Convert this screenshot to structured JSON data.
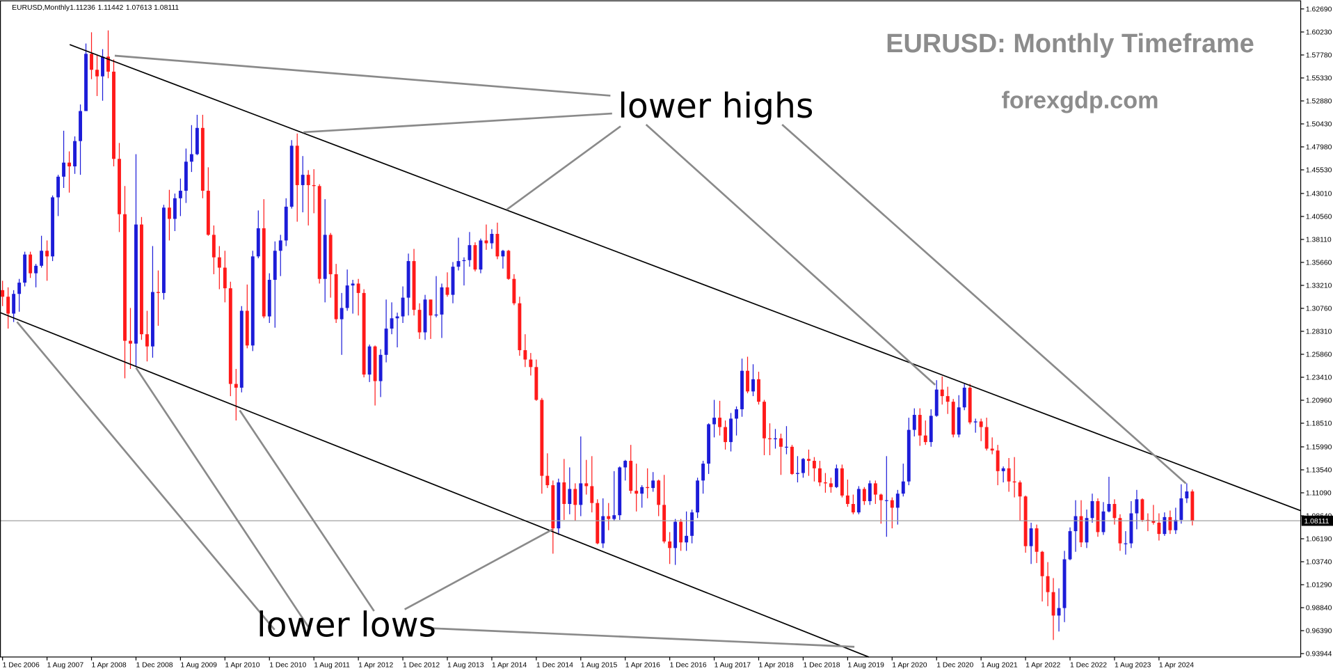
{
  "chart_data": {
    "type": "candlestick",
    "symbol": "EURUSD,Monthly",
    "title": "EURUSD: Monthly Timeframe",
    "subtitle": "forexgdp.com",
    "annotations": [
      "lower highs",
      "lower lows"
    ],
    "up_color": "#1c1cd8",
    "down_color": "#ff1a1a",
    "ylim": [
      0.9358,
      1.636
    ],
    "yticks": [
      {
        "value": 1.6269,
        "label": "1.62690"
      },
      {
        "value": 1.6023,
        "label": "1.60230"
      },
      {
        "value": 1.5778,
        "label": "1.57780"
      },
      {
        "value": 1.5533,
        "label": "1.55330"
      },
      {
        "value": 1.5288,
        "label": "1.52880"
      },
      {
        "value": 1.5043,
        "label": "1.50430"
      },
      {
        "value": 1.4798,
        "label": "1.47980"
      },
      {
        "value": 1.4553,
        "label": "1.45530"
      },
      {
        "value": 1.4301,
        "label": "1.43010"
      },
      {
        "value": 1.4056,
        "label": "1.40560"
      },
      {
        "value": 1.3811,
        "label": "1.38110"
      },
      {
        "value": 1.3566,
        "label": "1.35660"
      },
      {
        "value": 1.3321,
        "label": "1.33210"
      },
      {
        "value": 1.3076,
        "label": "1.30760"
      },
      {
        "value": 1.2831,
        "label": "1.28310"
      },
      {
        "value": 1.2586,
        "label": "1.25860"
      },
      {
        "value": 1.2341,
        "label": "1.23410"
      },
      {
        "value": 1.2096,
        "label": "1.20960"
      },
      {
        "value": 1.1851,
        "label": "1.18510"
      },
      {
        "value": 1.1599,
        "label": "1.15990"
      },
      {
        "value": 1.1354,
        "label": "1.13540"
      },
      {
        "value": 1.1109,
        "label": "1.11090"
      },
      {
        "value": 1.0864,
        "label": "1.08640"
      },
      {
        "value": 1.0619,
        "label": "1.06190"
      },
      {
        "value": 1.0374,
        "label": "1.03740"
      },
      {
        "value": 1.0129,
        "label": "1.01290"
      },
      {
        "value": 0.9884,
        "label": "0.98840"
      },
      {
        "value": 0.9639,
        "label": "0.96390"
      },
      0.93944
    ],
    "categories": [
      "1 Dec 2006",
      null,
      null,
      null,
      null,
      null,
      null,
      null,
      "1 Aug 2007",
      null,
      null,
      null,
      null,
      null,
      null,
      null,
      "1 Apr 2008",
      null,
      null,
      null,
      null,
      null,
      null,
      null,
      "1 Dec 2008",
      null,
      null,
      null,
      null,
      null,
      null,
      null,
      "1 Aug 2009",
      null,
      null,
      null,
      null,
      null,
      null,
      null,
      "1 Apr 2010",
      null,
      null,
      null,
      null,
      null,
      null,
      null,
      "1 Dec 2010",
      null,
      null,
      null,
      null,
      null,
      null,
      null,
      "1 Aug 2011",
      null,
      null,
      null,
      null,
      null,
      null,
      null,
      "1 Apr 2012",
      null,
      null,
      null,
      null,
      null,
      null,
      null,
      "1 Dec 2012",
      null,
      null,
      null,
      null,
      null,
      null,
      null,
      "1 Aug 2013",
      null,
      null,
      null,
      null,
      null,
      null,
      null,
      "1 Apr 2014",
      null,
      null,
      null,
      null,
      null,
      null,
      null,
      "1 Dec 2014",
      null,
      null,
      null,
      null,
      null,
      null,
      null,
      "1 Aug 2015",
      null,
      null,
      null,
      null,
      null,
      null,
      null,
      "1 Apr 2016",
      null,
      null,
      null,
      null,
      null,
      null,
      null,
      "1 Dec 2016",
      null,
      null,
      null,
      null,
      null,
      null,
      null,
      "1 Aug 2017",
      null,
      null,
      null,
      null,
      null,
      null,
      null,
      "1 Apr 2018",
      null,
      null,
      null,
      null,
      null,
      null,
      null,
      "1 Dec 2018",
      null,
      null,
      null,
      null,
      null,
      null,
      null,
      "1 Aug 2019",
      null,
      null,
      null,
      null,
      null,
      null,
      null,
      "1 Apr 2020",
      null,
      null,
      null,
      null,
      null,
      null,
      null,
      "1 Dec 2020",
      null,
      null,
      null,
      null,
      null,
      null,
      null,
      "1 Aug 2021",
      null,
      null,
      null,
      null,
      null,
      null,
      null,
      "1 Apr 2022",
      null,
      null,
      null,
      null,
      null,
      null,
      null,
      "1 Dec 2022",
      null,
      null,
      null,
      null,
      null,
      null,
      null,
      "1 Aug 2023",
      null,
      null,
      null,
      null,
      null,
      null,
      null,
      "1 Apr 2024",
      null,
      null,
      null,
      null,
      null,
      null
    ],
    "open": [
      1.327,
      1.32,
      1.302,
      1.323,
      1.335,
      1.365,
      1.345,
      1.353,
      1.369,
      1.363,
      1.426,
      1.448,
      1.463,
      1.459,
      1.486,
      1.518,
      1.579,
      1.562,
      1.555,
      1.576,
      1.56,
      1.467,
      1.408,
      1.273,
      1.27,
      1.397,
      1.28,
      1.267,
      1.325,
      1.324,
      1.415,
      1.403,
      1.425,
      1.433,
      1.464,
      1.472,
      1.5,
      1.433,
      1.386,
      1.362,
      1.351,
      1.329,
      1.227,
      1.223,
      1.305,
      1.268,
      1.363,
      1.393,
      1.299,
      1.338,
      1.369,
      1.38,
      1.416,
      1.481,
      1.439,
      1.45,
      1.439,
      1.438,
      1.339,
      1.386,
      1.344,
      1.296,
      1.308,
      1.332,
      1.334,
      1.324,
      1.237,
      1.267,
      1.23,
      1.258,
      1.286,
      1.297,
      1.299,
      1.319,
      1.358,
      1.306,
      1.282,
      1.317,
      1.3,
      1.301,
      1.33,
      1.322,
      1.352,
      1.358,
      1.359,
      1.375,
      1.349,
      1.38,
      1.377,
      1.387,
      1.363,
      1.369,
      1.339,
      1.313,
      1.263,
      1.253,
      1.245,
      1.21,
      1.129,
      1.119,
      1.073,
      1.122,
      1.099,
      1.115,
      1.098,
      1.121,
      1.118,
      1.1,
      1.057,
      1.086,
      1.083,
      1.087,
      1.138,
      1.145,
      1.113,
      1.11,
      1.117,
      1.116,
      1.124,
      1.098,
      1.059,
      1.052,
      1.08,
      1.058,
      1.065,
      1.09,
      1.124,
      1.142,
      1.184,
      1.191,
      1.181,
      1.165,
      1.19,
      1.2,
      1.241,
      1.219,
      1.232,
      1.208,
      1.169,
      1.168,
      1.169,
      1.16,
      1.16,
      1.131,
      1.132,
      1.147,
      1.145,
      1.137,
      1.122,
      1.121,
      1.117,
      1.137,
      1.108,
      1.099,
      1.09,
      1.115,
      1.102,
      1.121,
      1.109,
      1.103,
      1.103,
      1.095,
      1.11,
      1.123,
      1.178,
      1.194,
      1.172,
      1.165,
      1.193,
      1.221,
      1.214,
      1.208,
      1.173,
      1.202,
      1.223,
      1.186,
      1.187,
      1.181,
      1.158,
      1.156,
      1.134,
      1.137,
      1.123,
      1.122,
      1.107,
      1.054,
      1.073,
      1.048,
      1.022,
      1.005,
      0.98,
      0.988,
      1.04,
      1.07,
      1.086,
      1.058,
      1.084,
      1.102,
      1.069,
      1.091,
      1.099,
      1.084,
      1.057,
      1.057,
      1.089,
      1.104,
      1.082,
      1.081,
      1.079,
      1.067,
      1.085,
      1.071,
      1.082,
      1.105,
      1.11236
    ],
    "high": [
      1.337,
      1.33,
      1.327,
      1.339,
      1.368,
      1.368,
      1.355,
      1.385,
      1.38,
      1.428,
      1.45,
      1.497,
      1.475,
      1.491,
      1.525,
      1.59,
      1.602,
      1.578,
      1.584,
      1.604,
      1.573,
      1.484,
      1.438,
      1.308,
      1.472,
      1.405,
      1.305,
      1.374,
      1.348,
      1.418,
      1.434,
      1.43,
      1.446,
      1.478,
      1.503,
      1.514,
      1.514,
      1.458,
      1.396,
      1.374,
      1.369,
      1.336,
      1.243,
      1.31,
      1.333,
      1.369,
      1.412,
      1.424,
      1.345,
      1.379,
      1.386,
      1.425,
      1.487,
      1.494,
      1.47,
      1.455,
      1.456,
      1.44,
      1.424,
      1.388,
      1.355,
      1.324,
      1.349,
      1.338,
      1.339,
      1.328,
      1.269,
      1.268,
      1.264,
      1.317,
      1.314,
      1.303,
      1.331,
      1.366,
      1.371,
      1.313,
      1.322,
      1.317,
      1.342,
      1.334,
      1.346,
      1.357,
      1.383,
      1.362,
      1.389,
      1.378,
      1.382,
      1.397,
      1.392,
      1.399,
      1.37,
      1.37,
      1.344,
      1.32,
      1.28,
      1.26,
      1.253,
      1.212,
      1.153,
      1.124,
      1.126,
      1.147,
      1.138,
      1.121,
      1.171,
      1.146,
      1.15,
      1.104,
      1.105,
      1.1,
      1.134,
      1.139,
      1.146,
      1.162,
      1.142,
      1.119,
      1.137,
      1.133,
      1.125,
      1.13,
      1.069,
      1.083,
      1.083,
      1.091,
      1.093,
      1.127,
      1.145,
      1.185,
      1.21,
      1.209,
      1.188,
      1.196,
      1.203,
      1.254,
      1.256,
      1.248,
      1.24,
      1.21,
      1.185,
      1.179,
      1.174,
      1.182,
      1.162,
      1.15,
      1.148,
      1.157,
      1.149,
      1.145,
      1.132,
      1.127,
      1.141,
      1.141,
      1.125,
      1.109,
      1.118,
      1.117,
      1.124,
      1.124,
      1.11,
      1.15,
      1.106,
      1.114,
      1.142,
      1.191,
      1.201,
      1.201,
      1.188,
      1.2,
      1.231,
      1.235,
      1.224,
      1.211,
      1.215,
      1.227,
      1.227,
      1.19,
      1.19,
      1.191,
      1.17,
      1.162,
      1.139,
      1.148,
      1.149,
      1.124,
      1.108,
      1.079,
      1.077,
      1.049,
      1.037,
      1.02,
      1.009,
      1.049,
      1.074,
      1.103,
      1.103,
      1.093,
      1.11,
      1.105,
      1.101,
      1.128,
      1.104,
      1.088,
      1.07,
      1.102,
      1.114,
      1.105,
      1.089,
      1.098,
      1.089,
      1.09,
      1.092,
      1.095,
      1.12,
      1.121,
      1.11442
    ],
    "low": [
      1.31,
      1.286,
      1.293,
      1.304,
      1.331,
      1.34,
      1.33,
      1.351,
      1.337,
      1.358,
      1.406,
      1.436,
      1.431,
      1.451,
      1.45,
      1.518,
      1.552,
      1.534,
      1.529,
      1.553,
      1.459,
      1.389,
      1.233,
      1.243,
      1.246,
      1.274,
      1.251,
      1.255,
      1.289,
      1.317,
      1.38,
      1.39,
      1.406,
      1.42,
      1.453,
      1.471,
      1.425,
      1.385,
      1.344,
      1.328,
      1.314,
      1.214,
      1.188,
      1.218,
      1.265,
      1.262,
      1.361,
      1.297,
      1.292,
      1.287,
      1.342,
      1.374,
      1.414,
      1.4,
      1.41,
      1.396,
      1.409,
      1.334,
      1.314,
      1.319,
      1.292,
      1.258,
      1.305,
      1.302,
      1.3,
      1.234,
      1.229,
      1.204,
      1.213,
      1.25,
      1.28,
      1.266,
      1.292,
      1.3,
      1.3,
      1.275,
      1.274,
      1.275,
      1.298,
      1.276,
      1.32,
      1.313,
      1.348,
      1.332,
      1.352,
      1.347,
      1.345,
      1.37,
      1.371,
      1.36,
      1.35,
      1.338,
      1.311,
      1.257,
      1.245,
      1.236,
      1.209,
      1.11,
      1.116,
      1.046,
      1.066,
      1.082,
      1.088,
      1.081,
      1.086,
      1.109,
      1.09,
      1.056,
      1.052,
      1.071,
      1.081,
      1.082,
      1.124,
      1.11,
      1.091,
      1.095,
      1.105,
      1.112,
      1.086,
      1.057,
      1.035,
      1.034,
      1.049,
      1.049,
      1.057,
      1.084,
      1.11,
      1.131,
      1.17,
      1.172,
      1.157,
      1.155,
      1.172,
      1.192,
      1.217,
      1.214,
      1.205,
      1.151,
      1.151,
      1.158,
      1.13,
      1.152,
      1.13,
      1.122,
      1.127,
      1.129,
      1.123,
      1.118,
      1.111,
      1.111,
      1.116,
      1.106,
      1.096,
      1.088,
      1.088,
      1.098,
      1.098,
      1.099,
      1.078,
      1.064,
      1.073,
      1.077,
      1.107,
      1.119,
      1.171,
      1.161,
      1.162,
      1.16,
      1.192,
      1.205,
      1.195,
      1.17,
      1.17,
      1.199,
      1.184,
      1.175,
      1.166,
      1.156,
      1.152,
      1.119,
      1.122,
      1.112,
      1.106,
      1.081,
      1.047,
      1.035,
      1.036,
      0.995,
      0.99,
      0.954,
      0.963,
      0.973,
      1.039,
      1.048,
      1.053,
      1.052,
      1.079,
      1.064,
      1.066,
      1.09,
      1.077,
      1.049,
      1.045,
      1.052,
      1.072,
      1.08,
      1.07,
      1.077,
      1.06,
      1.065,
      1.067,
      1.067,
      1.078,
      1.1,
      1.07613
    ],
    "close": [
      1.32,
      1.302,
      1.323,
      1.335,
      1.365,
      1.345,
      1.353,
      1.369,
      1.363,
      1.426,
      1.448,
      1.463,
      1.459,
      1.486,
      1.518,
      1.579,
      1.562,
      1.555,
      1.576,
      1.56,
      1.467,
      1.408,
      1.273,
      1.27,
      1.397,
      1.28,
      1.267,
      1.325,
      1.324,
      1.415,
      1.403,
      1.425,
      1.433,
      1.464,
      1.472,
      1.5,
      1.433,
      1.386,
      1.362,
      1.351,
      1.329,
      1.227,
      1.223,
      1.305,
      1.268,
      1.363,
      1.393,
      1.299,
      1.338,
      1.369,
      1.38,
      1.416,
      1.481,
      1.439,
      1.45,
      1.439,
      1.438,
      1.339,
      1.386,
      1.344,
      1.296,
      1.308,
      1.332,
      1.334,
      1.324,
      1.237,
      1.267,
      1.23,
      1.258,
      1.286,
      1.297,
      1.299,
      1.319,
      1.358,
      1.306,
      1.282,
      1.317,
      1.3,
      1.301,
      1.33,
      1.322,
      1.352,
      1.358,
      1.359,
      1.375,
      1.349,
      1.38,
      1.377,
      1.387,
      1.363,
      1.369,
      1.339,
      1.313,
      1.263,
      1.253,
      1.245,
      1.21,
      1.129,
      1.119,
      1.073,
      1.122,
      1.099,
      1.115,
      1.098,
      1.121,
      1.118,
      1.1,
      1.057,
      1.086,
      1.083,
      1.087,
      1.138,
      1.145,
      1.113,
      1.11,
      1.117,
      1.116,
      1.124,
      1.098,
      1.059,
      1.052,
      1.08,
      1.058,
      1.065,
      1.09,
      1.124,
      1.142,
      1.184,
      1.191,
      1.181,
      1.165,
      1.19,
      1.2,
      1.241,
      1.219,
      1.232,
      1.208,
      1.169,
      1.168,
      1.169,
      1.16,
      1.16,
      1.131,
      1.132,
      1.147,
      1.145,
      1.137,
      1.122,
      1.121,
      1.117,
      1.137,
      1.108,
      1.099,
      1.09,
      1.115,
      1.102,
      1.121,
      1.109,
      1.103,
      1.103,
      1.095,
      1.11,
      1.123,
      1.178,
      1.194,
      1.172,
      1.165,
      1.193,
      1.221,
      1.214,
      1.208,
      1.173,
      1.202,
      1.223,
      1.186,
      1.187,
      1.181,
      1.158,
      1.156,
      1.134,
      1.137,
      1.123,
      1.122,
      1.107,
      1.054,
      1.073,
      1.048,
      1.022,
      1.005,
      0.98,
      0.988,
      1.04,
      1.07,
      1.086,
      1.058,
      1.084,
      1.102,
      1.069,
      1.091,
      1.099,
      1.084,
      1.057,
      1.057,
      1.089,
      1.104,
      1.082,
      1.081,
      1.079,
      1.067,
      1.085,
      1.071,
      1.082,
      1.105,
      1.11236,
      1.08111
    ]
  }
}
